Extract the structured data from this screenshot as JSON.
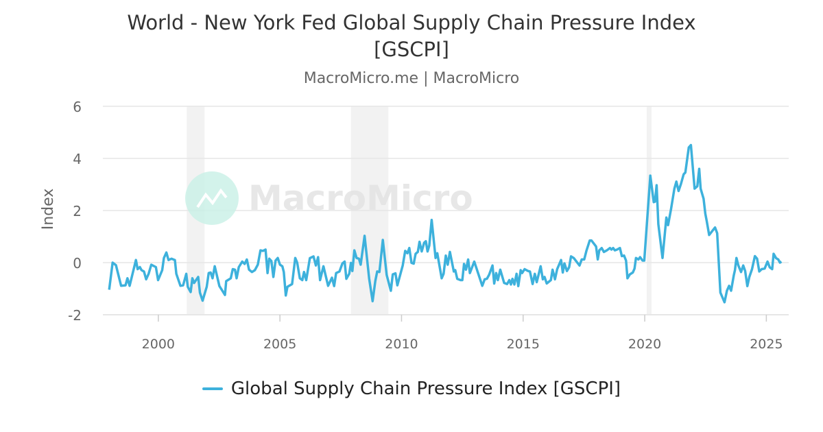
{
  "title": "World - New York Fed Global Supply Chain Pressure Index [GSCPI]",
  "subtitle": "MacroMicro.me | MacroMicro",
  "watermark": "MacroMicro",
  "colors": {
    "line": "#3db1dc",
    "recession": "#f2f2f2",
    "grid": "#e6e6e6",
    "watermark_circle": "#c8f0e6"
  },
  "chart_data": {
    "type": "line",
    "title": "World - New York Fed Global Supply Chain Pressure Index [GSCPI]",
    "ylabel": "Index",
    "xlabel": "",
    "xlim": [
      1997.72,
      2025.92
    ],
    "ylim": [
      -2,
      6
    ],
    "x_ticks": [
      2000,
      2005,
      2010,
      2015,
      2020,
      2025
    ],
    "y_ticks": [
      -2,
      0,
      2,
      4,
      6
    ],
    "grid": "horizontal",
    "legend_placement": "bottom",
    "shaded_periods": [
      [
        2001.17,
        2001.9
      ],
      [
        2007.92,
        2009.46
      ],
      [
        2020.08,
        2020.28
      ]
    ],
    "series": [
      {
        "name": "Global Supply Chain Pressure Index [GSCPI]",
        "points": [
          [
            1997.98,
            -1.04
          ],
          [
            1998.12,
            0.0
          ],
          [
            1998.26,
            -0.1
          ],
          [
            1998.47,
            -0.89
          ],
          [
            1998.65,
            -0.87
          ],
          [
            1998.73,
            -0.6
          ],
          [
            1998.82,
            -0.89
          ],
          [
            1999.08,
            0.1
          ],
          [
            1999.15,
            -0.25
          ],
          [
            1999.24,
            -0.17
          ],
          [
            1999.31,
            -0.29
          ],
          [
            1999.41,
            -0.34
          ],
          [
            1999.5,
            -0.64
          ],
          [
            1999.6,
            -0.43
          ],
          [
            1999.71,
            -0.08
          ],
          [
            1999.9,
            -0.17
          ],
          [
            1999.99,
            -0.67
          ],
          [
            2000.16,
            -0.29
          ],
          [
            2000.23,
            0.18
          ],
          [
            2000.33,
            0.39
          ],
          [
            2000.42,
            0.1
          ],
          [
            2000.54,
            0.15
          ],
          [
            2000.68,
            0.1
          ],
          [
            2000.74,
            -0.43
          ],
          [
            2000.91,
            -0.89
          ],
          [
            2001.02,
            -0.87
          ],
          [
            2001.15,
            -0.43
          ],
          [
            2001.21,
            -0.93
          ],
          [
            2001.33,
            -1.13
          ],
          [
            2001.4,
            -0.6
          ],
          [
            2001.47,
            -0.78
          ],
          [
            2001.64,
            -0.55
          ],
          [
            2001.71,
            -1.15
          ],
          [
            2001.82,
            -1.46
          ],
          [
            2001.99,
            -0.93
          ],
          [
            2002.07,
            -0.4
          ],
          [
            2002.15,
            -0.38
          ],
          [
            2002.23,
            -0.6
          ],
          [
            2002.32,
            -0.14
          ],
          [
            2002.51,
            -0.9
          ],
          [
            2002.62,
            -1.06
          ],
          [
            2002.74,
            -1.24
          ],
          [
            2002.79,
            -0.71
          ],
          [
            2002.98,
            -0.6
          ],
          [
            2003.06,
            -0.25
          ],
          [
            2003.15,
            -0.27
          ],
          [
            2003.22,
            -0.6
          ],
          [
            2003.31,
            -0.17
          ],
          [
            2003.45,
            0.04
          ],
          [
            2003.55,
            -0.05
          ],
          [
            2003.64,
            0.12
          ],
          [
            2003.73,
            -0.27
          ],
          [
            2003.85,
            -0.36
          ],
          [
            2003.97,
            -0.29
          ],
          [
            2004.09,
            -0.08
          ],
          [
            2004.2,
            0.47
          ],
          [
            2004.3,
            0.45
          ],
          [
            2004.41,
            0.5
          ],
          [
            2004.49,
            -0.4
          ],
          [
            2004.56,
            0.15
          ],
          [
            2004.65,
            0.06
          ],
          [
            2004.73,
            -0.55
          ],
          [
            2004.82,
            0.08
          ],
          [
            2004.91,
            0.18
          ],
          [
            2005.0,
            -0.08
          ],
          [
            2005.1,
            -0.14
          ],
          [
            2005.16,
            -0.36
          ],
          [
            2005.24,
            -1.26
          ],
          [
            2005.31,
            -0.93
          ],
          [
            2005.5,
            -0.82
          ],
          [
            2005.63,
            0.18
          ],
          [
            2005.71,
            0.0
          ],
          [
            2005.82,
            -0.6
          ],
          [
            2005.92,
            -0.67
          ],
          [
            2005.99,
            -0.36
          ],
          [
            2006.08,
            -0.67
          ],
          [
            2006.23,
            0.17
          ],
          [
            2006.38,
            0.24
          ],
          [
            2006.48,
            -0.11
          ],
          [
            2006.57,
            0.21
          ],
          [
            2006.65,
            -0.67
          ],
          [
            2006.79,
            -0.14
          ],
          [
            2006.98,
            -0.89
          ],
          [
            2007.14,
            -0.58
          ],
          [
            2007.23,
            -0.9
          ],
          [
            2007.31,
            -0.4
          ],
          [
            2007.45,
            -0.34
          ],
          [
            2007.57,
            -0.03
          ],
          [
            2007.66,
            0.04
          ],
          [
            2007.73,
            -0.62
          ],
          [
            2007.85,
            -0.43
          ],
          [
            2007.92,
            -0.01
          ],
          [
            2007.98,
            -0.32
          ],
          [
            2008.06,
            0.47
          ],
          [
            2008.15,
            0.18
          ],
          [
            2008.25,
            0.15
          ],
          [
            2008.32,
            -0.08
          ],
          [
            2008.48,
            1.03
          ],
          [
            2008.67,
            -0.62
          ],
          [
            2008.81,
            -1.48
          ],
          [
            2008.92,
            -0.71
          ],
          [
            2009.0,
            -0.34
          ],
          [
            2009.09,
            -0.36
          ],
          [
            2009.23,
            0.87
          ],
          [
            2009.39,
            -0.47
          ],
          [
            2009.56,
            -1.08
          ],
          [
            2009.64,
            -0.45
          ],
          [
            2009.75,
            -0.41
          ],
          [
            2009.83,
            -0.87
          ],
          [
            2010.05,
            -0.11
          ],
          [
            2010.15,
            0.45
          ],
          [
            2010.24,
            0.36
          ],
          [
            2010.32,
            0.56
          ],
          [
            2010.41,
            -0.01
          ],
          [
            2010.5,
            -0.04
          ],
          [
            2010.58,
            0.34
          ],
          [
            2010.67,
            0.41
          ],
          [
            2010.74,
            0.8
          ],
          [
            2010.83,
            0.43
          ],
          [
            2010.93,
            0.76
          ],
          [
            2011.0,
            0.82
          ],
          [
            2011.07,
            0.43
          ],
          [
            2011.14,
            0.65
          ],
          [
            2011.24,
            1.64
          ],
          [
            2011.4,
            0.18
          ],
          [
            2011.47,
            0.36
          ],
          [
            2011.65,
            -0.6
          ],
          [
            2011.73,
            -0.43
          ],
          [
            2011.82,
            0.27
          ],
          [
            2011.9,
            -0.08
          ],
          [
            2011.99,
            0.41
          ],
          [
            2012.15,
            -0.34
          ],
          [
            2012.21,
            -0.29
          ],
          [
            2012.29,
            -0.62
          ],
          [
            2012.43,
            -0.67
          ],
          [
            2012.5,
            -0.67
          ],
          [
            2012.57,
            -0.05
          ],
          [
            2012.65,
            -0.27
          ],
          [
            2012.74,
            0.12
          ],
          [
            2012.81,
            -0.4
          ],
          [
            2012.99,
            0.04
          ],
          [
            2013.14,
            -0.38
          ],
          [
            2013.32,
            -0.89
          ],
          [
            2013.42,
            -0.64
          ],
          [
            2013.51,
            -0.62
          ],
          [
            2013.6,
            -0.47
          ],
          [
            2013.74,
            -0.11
          ],
          [
            2013.81,
            -0.8
          ],
          [
            2013.89,
            -0.4
          ],
          [
            2013.96,
            -0.67
          ],
          [
            2014.06,
            -0.27
          ],
          [
            2014.22,
            -0.78
          ],
          [
            2014.34,
            -0.82
          ],
          [
            2014.43,
            -0.67
          ],
          [
            2014.5,
            -0.84
          ],
          [
            2014.56,
            -0.62
          ],
          [
            2014.64,
            -0.84
          ],
          [
            2014.73,
            -0.43
          ],
          [
            2014.8,
            -0.9
          ],
          [
            2014.9,
            -0.29
          ],
          [
            2014.96,
            -0.4
          ],
          [
            2015.06,
            -0.25
          ],
          [
            2015.2,
            -0.32
          ],
          [
            2015.28,
            -0.34
          ],
          [
            2015.39,
            -0.82
          ],
          [
            2015.48,
            -0.43
          ],
          [
            2015.56,
            -0.75
          ],
          [
            2015.72,
            -0.14
          ],
          [
            2015.81,
            -0.64
          ],
          [
            2015.88,
            -0.55
          ],
          [
            2015.97,
            -0.8
          ],
          [
            2016.14,
            -0.67
          ],
          [
            2016.21,
            -0.27
          ],
          [
            2016.31,
            -0.64
          ],
          [
            2016.4,
            -0.25
          ],
          [
            2016.56,
            0.1
          ],
          [
            2016.63,
            -0.38
          ],
          [
            2016.7,
            -0.03
          ],
          [
            2016.8,
            -0.32
          ],
          [
            2016.89,
            -0.18
          ],
          [
            2016.97,
            0.24
          ],
          [
            2017.08,
            0.18
          ],
          [
            2017.32,
            -0.11
          ],
          [
            2017.41,
            0.12
          ],
          [
            2017.51,
            0.12
          ],
          [
            2017.6,
            0.45
          ],
          [
            2017.74,
            0.85
          ],
          [
            2017.81,
            0.85
          ],
          [
            2018.0,
            0.62
          ],
          [
            2018.07,
            0.12
          ],
          [
            2018.13,
            0.47
          ],
          [
            2018.23,
            0.56
          ],
          [
            2018.32,
            0.41
          ],
          [
            2018.44,
            0.47
          ],
          [
            2018.57,
            0.56
          ],
          [
            2018.63,
            0.5
          ],
          [
            2018.7,
            0.56
          ],
          [
            2018.77,
            0.47
          ],
          [
            2018.86,
            0.5
          ],
          [
            2018.98,
            0.56
          ],
          [
            2019.06,
            0.25
          ],
          [
            2019.15,
            0.27
          ],
          [
            2019.23,
            0.08
          ],
          [
            2019.29,
            -0.6
          ],
          [
            2019.39,
            -0.45
          ],
          [
            2019.51,
            -0.38
          ],
          [
            2019.58,
            -0.23
          ],
          [
            2019.64,
            0.18
          ],
          [
            2019.74,
            0.12
          ],
          [
            2019.81,
            0.21
          ],
          [
            2019.91,
            0.08
          ],
          [
            2019.98,
            0.08
          ],
          [
            2020.23,
            3.34
          ],
          [
            2020.37,
            2.32
          ],
          [
            2020.42,
            2.34
          ],
          [
            2020.49,
            2.97
          ],
          [
            2020.56,
            1.48
          ],
          [
            2020.73,
            0.18
          ],
          [
            2020.89,
            1.73
          ],
          [
            2020.96,
            1.44
          ],
          [
            2021.08,
            2.05
          ],
          [
            2021.22,
            2.84
          ],
          [
            2021.3,
            3.11
          ],
          [
            2021.39,
            2.75
          ],
          [
            2021.49,
            3.02
          ],
          [
            2021.6,
            3.39
          ],
          [
            2021.67,
            3.46
          ],
          [
            2021.81,
            4.42
          ],
          [
            2021.9,
            4.51
          ],
          [
            2022.05,
            2.84
          ],
          [
            2022.16,
            2.93
          ],
          [
            2022.24,
            3.6
          ],
          [
            2022.3,
            2.84
          ],
          [
            2022.42,
            2.45
          ],
          [
            2022.49,
            1.88
          ],
          [
            2022.55,
            1.59
          ],
          [
            2022.65,
            1.06
          ],
          [
            2022.89,
            1.35
          ],
          [
            2022.98,
            1.13
          ],
          [
            2023.11,
            -1.15
          ],
          [
            2023.28,
            -1.52
          ],
          [
            2023.38,
            -1.08
          ],
          [
            2023.47,
            -0.89
          ],
          [
            2023.55,
            -1.08
          ],
          [
            2023.66,
            -0.49
          ],
          [
            2023.71,
            -0.29
          ],
          [
            2023.77,
            0.18
          ],
          [
            2023.85,
            -0.11
          ],
          [
            2023.96,
            -0.36
          ],
          [
            2024.05,
            -0.11
          ],
          [
            2024.13,
            -0.32
          ],
          [
            2024.22,
            -0.9
          ],
          [
            2024.3,
            -0.55
          ],
          [
            2024.41,
            -0.25
          ],
          [
            2024.53,
            0.25
          ],
          [
            2024.62,
            0.15
          ],
          [
            2024.71,
            -0.34
          ],
          [
            2024.81,
            -0.25
          ],
          [
            2024.93,
            -0.23
          ],
          [
            2025.05,
            0.04
          ],
          [
            2025.14,
            -0.18
          ],
          [
            2025.24,
            -0.25
          ],
          [
            2025.3,
            0.34
          ],
          [
            2025.4,
            0.17
          ],
          [
            2025.49,
            0.12
          ],
          [
            2025.56,
            0.0
          ],
          [
            2025.62,
            0.04
          ]
        ]
      }
    ]
  }
}
